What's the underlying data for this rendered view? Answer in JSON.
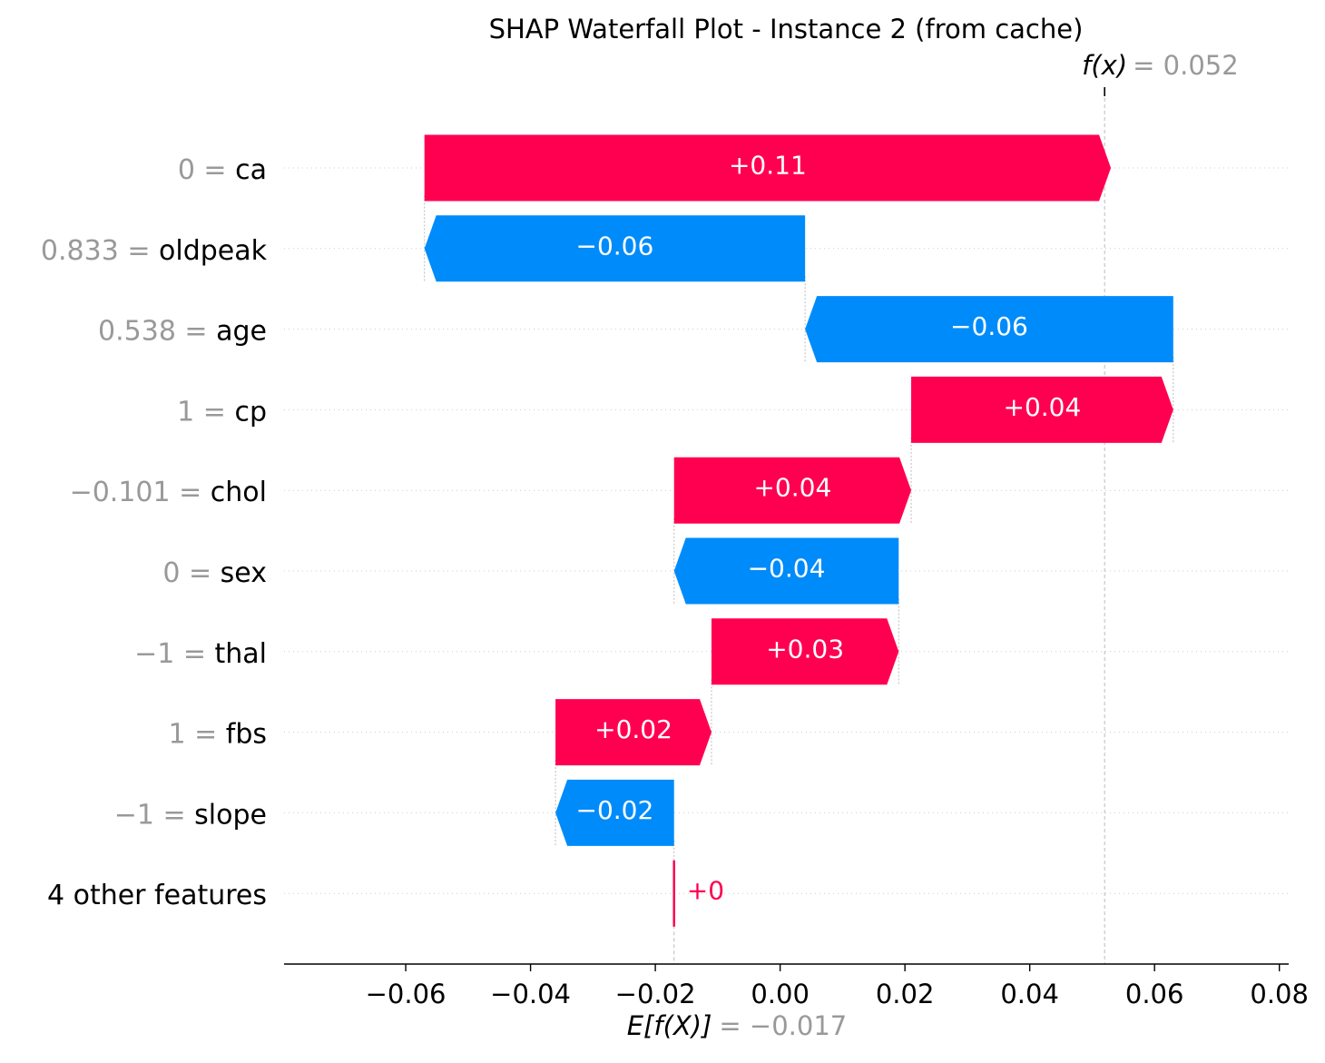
{
  "chart_data": {
    "type": "waterfall",
    "title": "SHAP Waterfall Plot - Instance 2 (from cache)",
    "fx_label": "f(x)",
    "fx_value_text": "= 0.052",
    "fx": 0.052,
    "ex_label": "E[f(X)]",
    "ex_value_text": "= −0.017",
    "ex": -0.017,
    "xlim": [
      -0.0795,
      0.0815
    ],
    "xticks": [
      -0.06,
      -0.04,
      -0.02,
      0.0,
      0.02,
      0.04,
      0.06,
      0.08
    ],
    "xtick_labels": [
      "−0.06",
      "−0.04",
      "−0.02",
      "0.00",
      "0.02",
      "0.04",
      "0.06",
      "0.08"
    ],
    "colors": {
      "positive": "#ff0051",
      "negative": "#008bfb",
      "value_label": "#999999",
      "feature_label": "#000000"
    },
    "features": [
      {
        "value": "0",
        "name": "ca",
        "shap": 0.11,
        "text": "+0.11"
      },
      {
        "value": "0.833",
        "name": "oldpeak",
        "shap": -0.061,
        "text": "−0.06"
      },
      {
        "value": "0.538",
        "name": "age",
        "shap": -0.059,
        "text": "−0.06"
      },
      {
        "value": "1",
        "name": "cp",
        "shap": 0.042,
        "text": "+0.04"
      },
      {
        "value": "−0.101",
        "name": "chol",
        "shap": 0.038,
        "text": "+0.04"
      },
      {
        "value": "0",
        "name": "sex",
        "shap": -0.036,
        "text": "−0.04"
      },
      {
        "value": "−1",
        "name": "thal",
        "shap": 0.03,
        "text": "+0.03"
      },
      {
        "value": "1",
        "name": "fbs",
        "shap": 0.025,
        "text": "+0.02"
      },
      {
        "value": "−1",
        "name": "slope",
        "shap": -0.019,
        "text": "−0.02"
      },
      {
        "value": "",
        "name": "4 other features",
        "shap": 0.0,
        "text": "+0"
      }
    ]
  }
}
